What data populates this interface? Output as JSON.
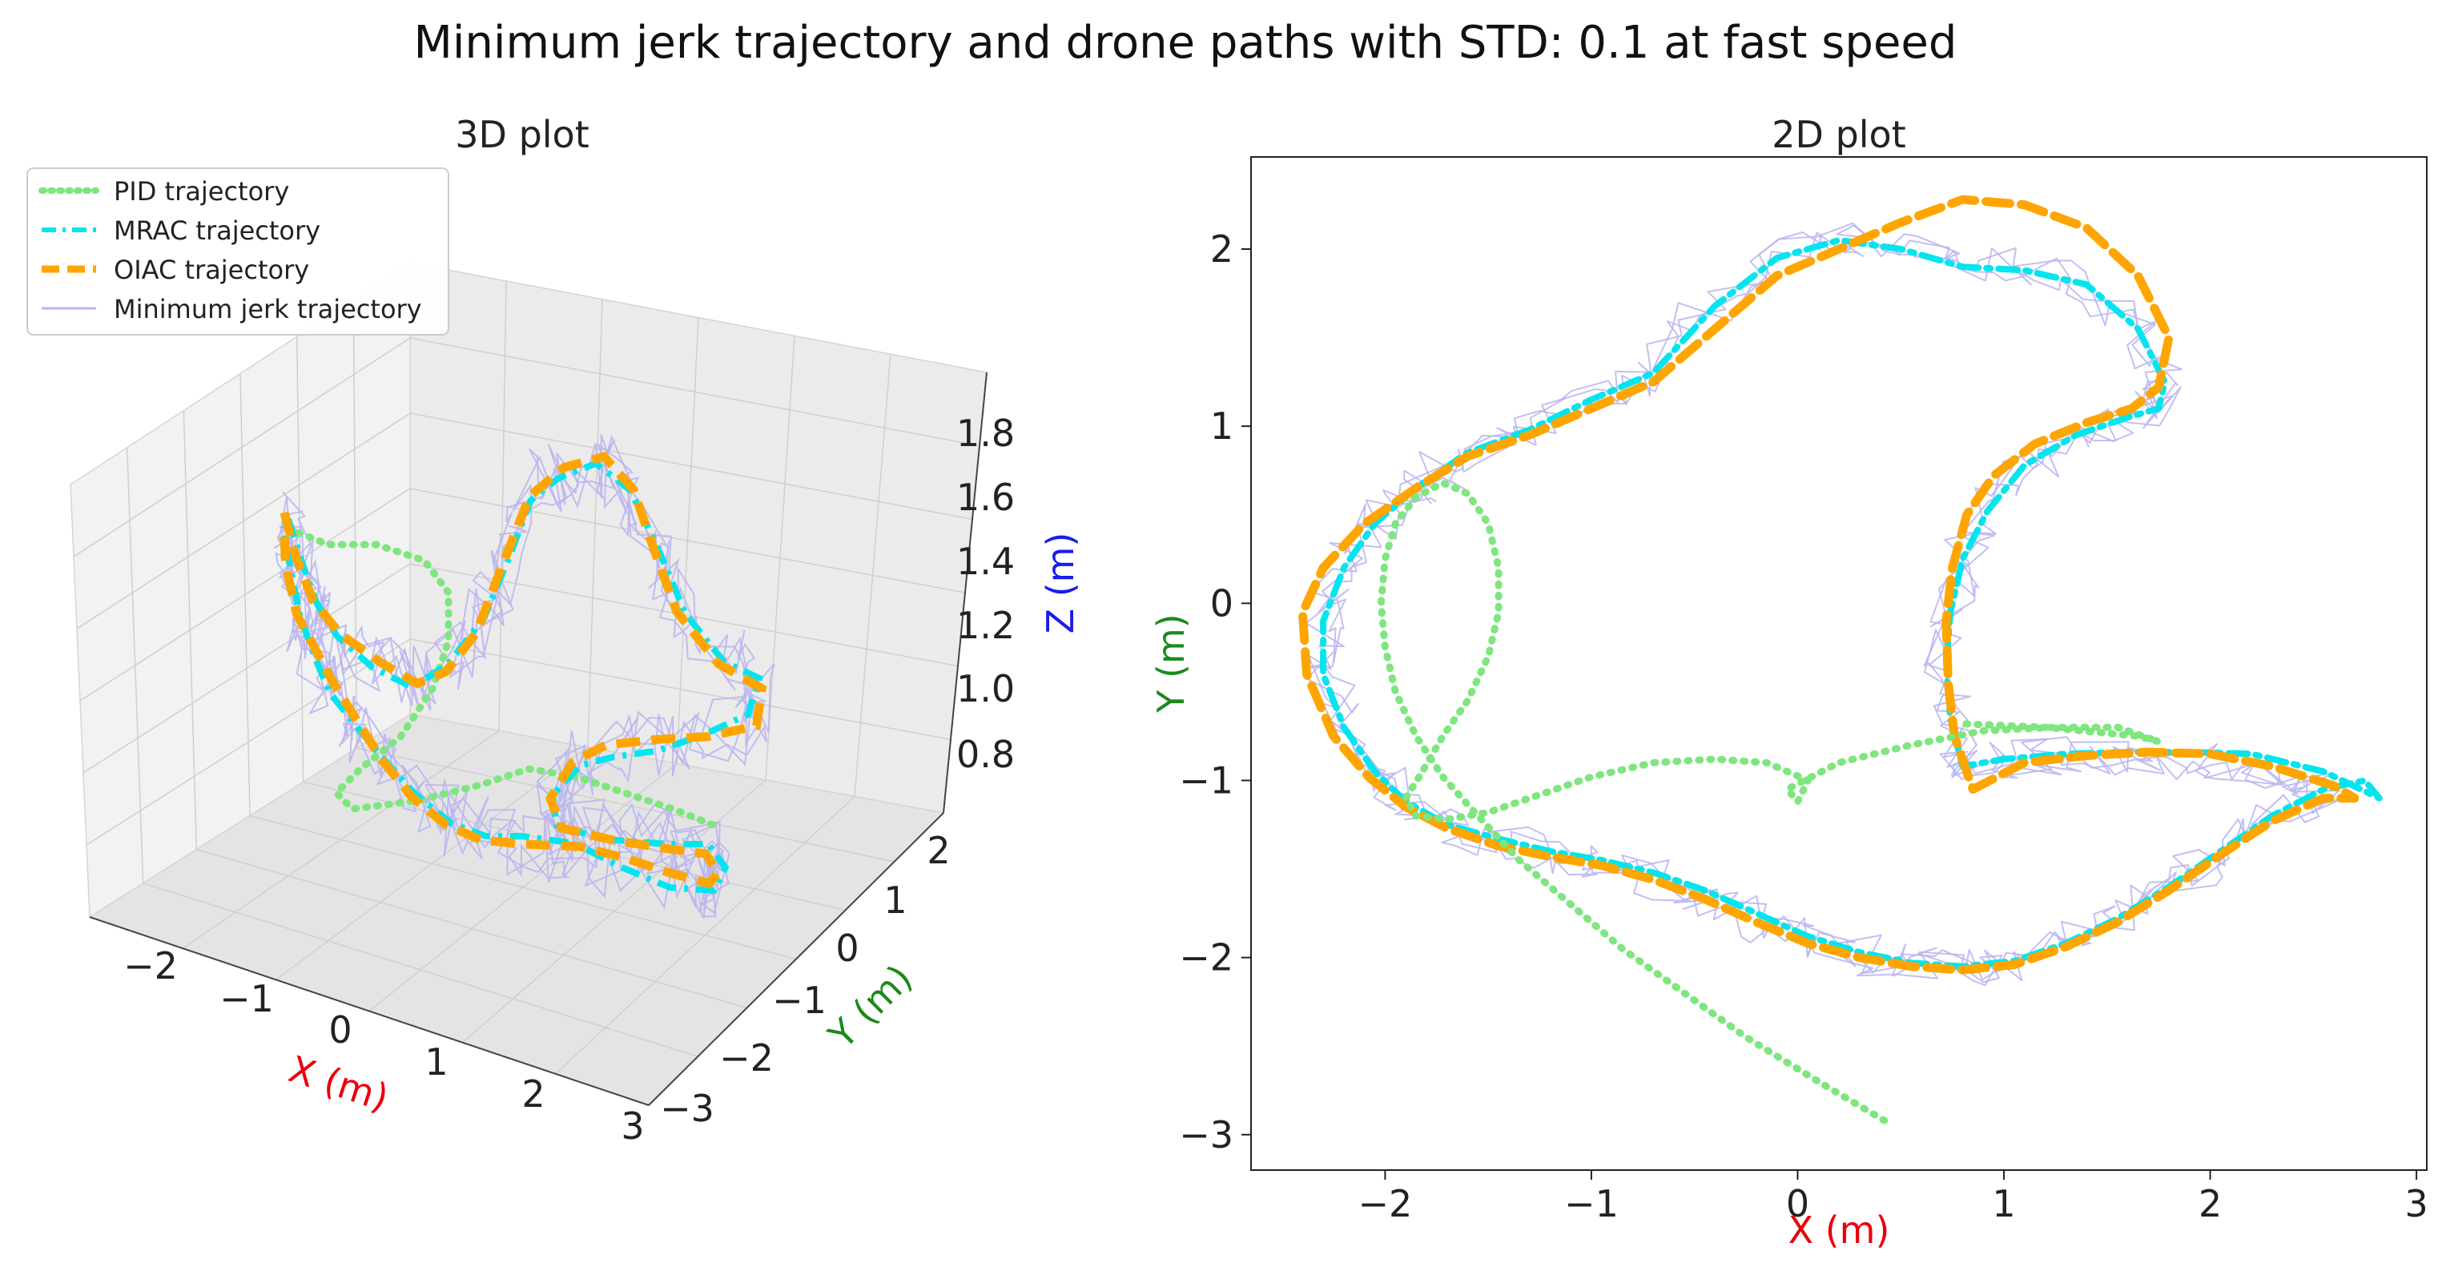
{
  "figure": {
    "title": "Minimum jerk trajectory and drone paths with STD: 0.1 at fast speed"
  },
  "colors": {
    "pid": "#7fe67f",
    "mrac": "#00e5ee",
    "oiac": "#ffa500",
    "minjerk": "#b8b4f0",
    "xlabel": "#e8000b",
    "ylabel": "#1a8a1a",
    "zlabel": "#1c1ce6"
  },
  "chart_data": [
    {
      "type": "line",
      "title": "3D plot",
      "projection": "3d",
      "xlabel": "X (m)",
      "ylabel": "Y (m)",
      "zlabel": "Z (m)",
      "x_ticks": [
        "−2",
        "−1",
        "0",
        "1",
        "2",
        "3"
      ],
      "y_ticks": [
        "−3",
        "−2",
        "−1",
        "0",
        "1",
        "2"
      ],
      "z_ticks": [
        "0.8",
        "1.0",
        "1.2",
        "1.4",
        "1.6",
        "1.8"
      ],
      "legend": {
        "placement": "upper-left",
        "entries": [
          "PID trajectory",
          "MRAC trajectory",
          "OIAC trajectory",
          "Minimum jerk trajectory"
        ]
      },
      "grid": true
    },
    {
      "type": "line",
      "title": "2D plot",
      "xlabel": "X (m)",
      "ylabel": "Y (m)",
      "xlim": [
        -2.65,
        3.05
      ],
      "ylim": [
        -3.2,
        2.52
      ],
      "x_ticks": [
        "−2",
        "−1",
        "0",
        "1",
        "2",
        "3"
      ],
      "y_ticks": [
        "−3",
        "−2",
        "−1",
        "0",
        "1",
        "2"
      ],
      "grid": false,
      "series": [
        {
          "name": "Minimum jerk trajectory",
          "style": "solid",
          "x": [
            -1.85,
            -2.05,
            -2.2,
            -2.3,
            -2.3,
            -2.2,
            -2.05,
            -1.9,
            -1.7,
            -1.45,
            -1.2,
            -0.95,
            -0.7,
            -0.45,
            -0.2,
            0.05,
            0.3,
            0.55,
            0.8,
            1.05,
            1.3,
            1.55,
            1.8,
            2.05,
            2.3,
            2.55,
            2.5,
            2.25,
            2.0,
            1.75,
            1.5,
            1.25,
            1.0,
            0.8,
            0.75,
            0.72,
            0.72,
            0.78,
            0.9,
            1.1,
            1.35,
            1.6,
            1.75,
            1.78,
            1.65,
            1.4,
            1.1,
            0.8,
            0.5,
            0.2,
            -0.1,
            -0.4,
            -0.7,
            -1.0,
            -1.3,
            -1.6,
            -1.85
          ],
          "y": [
            0.65,
            0.45,
            0.2,
            -0.1,
            -0.4,
            -0.7,
            -0.95,
            -1.12,
            -1.25,
            -1.35,
            -1.42,
            -1.47,
            -1.55,
            -1.65,
            -1.78,
            -1.9,
            -1.98,
            -2.03,
            -2.06,
            -2.02,
            -1.92,
            -1.78,
            -1.6,
            -1.4,
            -1.22,
            -1.1,
            -1.02,
            -0.95,
            -0.9,
            -0.88,
            -0.86,
            -0.85,
            -0.88,
            -0.95,
            -0.7,
            -0.4,
            -0.1,
            0.2,
            0.5,
            0.78,
            0.95,
            1.05,
            1.1,
            1.25,
            1.55,
            1.8,
            1.9,
            1.92,
            2.02,
            2.08,
            1.98,
            1.7,
            1.3,
            1.15,
            0.98,
            0.85,
            0.65
          ]
        },
        {
          "name": "MRAC trajectory",
          "style": "dashdot",
          "x": [
            -1.85,
            -2.05,
            -2.2,
            -2.3,
            -2.3,
            -2.2,
            -2.05,
            -1.9,
            -1.7,
            -1.45,
            -1.2,
            -0.95,
            -0.7,
            -0.45,
            -0.2,
            0.05,
            0.3,
            0.55,
            0.8,
            1.05,
            1.3,
            1.55,
            1.8,
            2.05,
            2.3,
            2.55,
            2.75,
            2.82,
            2.55,
            2.2,
            1.9,
            1.6,
            1.3,
            1.0,
            0.8,
            0.74,
            0.72,
            0.74,
            0.8,
            0.92,
            1.1,
            1.35,
            1.6,
            1.75,
            1.78,
            1.65,
            1.4,
            1.1,
            0.8,
            0.5,
            0.2,
            -0.1,
            -0.4,
            -0.7,
            -1.0,
            -1.3,
            -1.6,
            -1.85
          ],
          "y": [
            0.65,
            0.45,
            0.2,
            -0.1,
            -0.4,
            -0.7,
            -0.95,
            -1.12,
            -1.25,
            -1.33,
            -1.4,
            -1.45,
            -1.52,
            -1.62,
            -1.75,
            -1.88,
            -1.97,
            -2.03,
            -2.05,
            -2.02,
            -1.92,
            -1.78,
            -1.6,
            -1.4,
            -1.2,
            -1.05,
            -1.0,
            -1.1,
            -0.95,
            -0.85,
            -0.84,
            -0.84,
            -0.85,
            -0.88,
            -0.92,
            -0.65,
            -0.35,
            -0.05,
            0.25,
            0.52,
            0.78,
            0.95,
            1.05,
            1.1,
            1.25,
            1.55,
            1.8,
            1.88,
            1.9,
            2.0,
            2.05,
            1.95,
            1.68,
            1.3,
            1.15,
            0.98,
            0.85,
            0.65
          ]
        },
        {
          "name": "OIAC trajectory",
          "style": "dashed",
          "x": [
            -1.85,
            -2.1,
            -2.3,
            -2.4,
            -2.38,
            -2.25,
            -2.08,
            -1.9,
            -1.7,
            -1.45,
            -1.2,
            -0.95,
            -0.7,
            -0.45,
            -0.2,
            0.05,
            0.3,
            0.55,
            0.8,
            1.05,
            1.3,
            1.55,
            1.8,
            2.05,
            2.3,
            2.55,
            2.7,
            2.6,
            2.3,
            2.0,
            1.7,
            1.4,
            1.1,
            0.85,
            0.76,
            0.73,
            0.72,
            0.75,
            0.82,
            0.95,
            1.15,
            1.4,
            1.62,
            1.75,
            1.8,
            1.65,
            1.4,
            1.1,
            0.8,
            0.5,
            0.2,
            -0.1,
            -0.4,
            -0.7,
            -1.0,
            -1.3,
            -1.6,
            -1.85
          ],
          "y": [
            0.65,
            0.45,
            0.2,
            -0.05,
            -0.4,
            -0.75,
            -0.98,
            -1.15,
            -1.27,
            -1.37,
            -1.43,
            -1.48,
            -1.56,
            -1.67,
            -1.8,
            -1.92,
            -2.0,
            -2.05,
            -2.07,
            -2.04,
            -1.94,
            -1.8,
            -1.62,
            -1.42,
            -1.23,
            -1.1,
            -1.1,
            -1.03,
            -0.92,
            -0.85,
            -0.84,
            -0.86,
            -0.9,
            -1.05,
            -0.75,
            -0.45,
            -0.1,
            0.2,
            0.5,
            0.72,
            0.9,
            1.02,
            1.1,
            1.22,
            1.5,
            1.85,
            2.12,
            2.25,
            2.28,
            2.15,
            2.0,
            1.85,
            1.55,
            1.25,
            1.1,
            0.95,
            0.83,
            0.65
          ]
        },
        {
          "name": "PID trajectory",
          "style": "dotted",
          "x": [
            0.42,
            0.1,
            -0.25,
            -0.55,
            -0.85,
            -1.1,
            -1.35,
            -1.55,
            -1.72,
            -1.85,
            -1.95,
            -2.0,
            -2.02,
            -2.0,
            -1.95,
            -1.85,
            -1.72,
            -1.6,
            -1.5,
            -1.45,
            -1.45,
            -1.5,
            -1.6,
            -1.72,
            -1.82,
            -1.9,
            -1.85,
            -1.7,
            -1.5,
            -1.25,
            -1.0,
            -0.7,
            -0.4,
            -0.15,
            0.05,
            0.0,
            -0.05,
            0.2,
            0.55,
            0.9,
            1.25,
            1.55,
            1.75,
            1.65,
            1.2,
            0.8
          ],
          "y": [
            -2.92,
            -2.7,
            -2.45,
            -2.2,
            -1.95,
            -1.7,
            -1.45,
            -1.2,
            -0.98,
            -0.75,
            -0.5,
            -0.25,
            0.0,
            0.25,
            0.45,
            0.6,
            0.68,
            0.62,
            0.45,
            0.2,
            -0.05,
            -0.3,
            -0.55,
            -0.75,
            -0.95,
            -1.1,
            -1.2,
            -1.22,
            -1.18,
            -1.08,
            -0.98,
            -0.9,
            -0.88,
            -0.9,
            -1.0,
            -1.12,
            -1.05,
            -0.9,
            -0.8,
            -0.72,
            -0.7,
            -0.7,
            -0.78,
            -0.75,
            -0.7,
            -0.68
          ]
        }
      ]
    }
  ]
}
